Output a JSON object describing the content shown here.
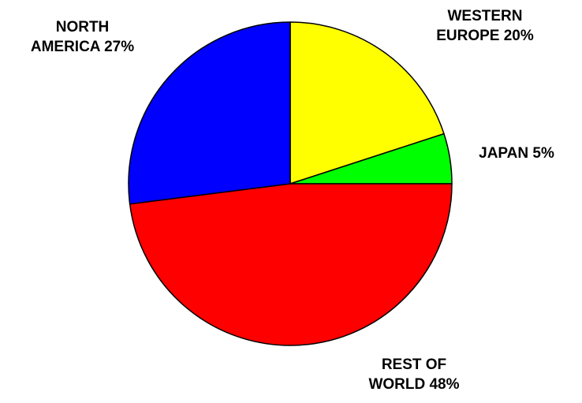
{
  "chart_data": {
    "type": "pie",
    "slices": [
      {
        "label_line1": "WESTERN",
        "label_line2": "EUROPE  20%",
        "name": "WESTERN EUROPE",
        "value": 20,
        "color": "#FFFF00"
      },
      {
        "label_line1": "",
        "label_line2": "JAPAN  5%",
        "name": "JAPAN",
        "value": 5,
        "color": "#00FF00"
      },
      {
        "label_line1": "REST OF",
        "label_line2": "WORLD  48%",
        "name": "REST OF WORLD",
        "value": 48,
        "color": "#FF0000"
      },
      {
        "label_line1": "NORTH",
        "label_line2": "AMERICA  27%",
        "name": "NORTH AMERICA",
        "value": 27,
        "color": "#0000FF"
      }
    ],
    "start": "12 o'clock",
    "direction": "clockwise",
    "outline_color": "#000000",
    "legend": "none"
  }
}
